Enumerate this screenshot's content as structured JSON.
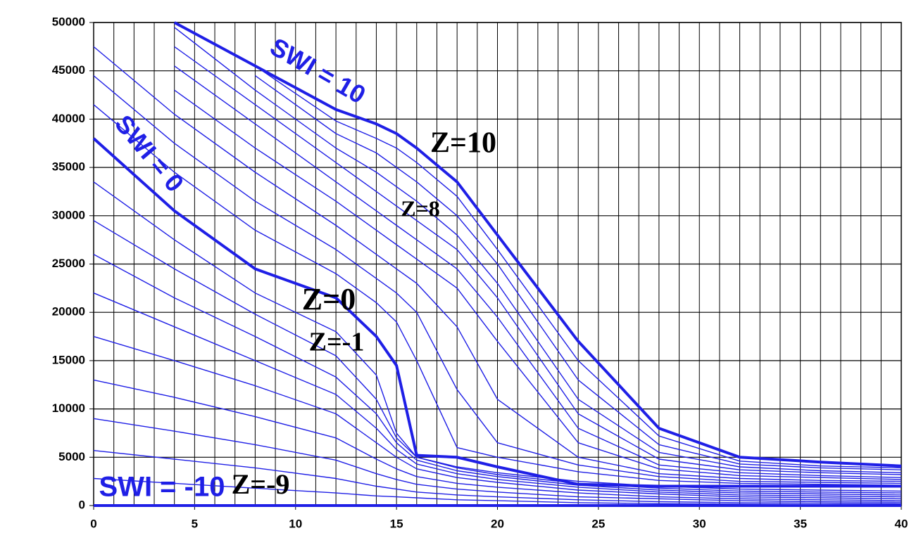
{
  "chart_data": {
    "type": "line",
    "x": [
      0,
      4,
      8,
      12,
      14,
      15,
      16,
      18,
      20,
      24,
      28,
      32,
      36,
      40
    ],
    "xlim": [
      0,
      40
    ],
    "xticks": [
      0,
      5,
      10,
      15,
      20,
      25,
      30,
      35,
      40
    ],
    "x_minor_grid_step": 1,
    "ylim": [
      0,
      50000
    ],
    "yticks": [
      0,
      5000,
      10000,
      15000,
      20000,
      25000,
      30000,
      35000,
      40000,
      45000,
      50000
    ],
    "grid": true,
    "series": [
      {
        "color": "#1f1fe6",
        "bold": true,
        "values": [
          0,
          0,
          0,
          0,
          0,
          0,
          0,
          0,
          0,
          0,
          0,
          0,
          0,
          0
        ]
      },
      {
        "color": "#1f1fe6",
        "values": [
          2800,
          2300,
          1800,
          1300,
          1000,
          900,
          800,
          600,
          500,
          300,
          200,
          150,
          100,
          100
        ]
      },
      {
        "color": "#1f1fe6",
        "values": [
          5700,
          4800,
          3900,
          2800,
          2000,
          1700,
          1400,
          1100,
          900,
          600,
          400,
          300,
          250,
          200
        ]
      },
      {
        "color": "#1f1fe6",
        "values": [
          9000,
          7700,
          6300,
          4700,
          3300,
          2700,
          2200,
          1700,
          1400,
          900,
          700,
          500,
          400,
          350
        ]
      },
      {
        "color": "#1f1fe6",
        "values": [
          13000,
          11200,
          9200,
          7000,
          4800,
          3800,
          3000,
          2300,
          1900,
          1300,
          900,
          700,
          600,
          500
        ]
      },
      {
        "color": "#1f1fe6",
        "values": [
          17500,
          15000,
          12400,
          9500,
          6500,
          5000,
          3800,
          2900,
          2400,
          1600,
          1200,
          900,
          800,
          700
        ]
      },
      {
        "color": "#1f1fe6",
        "values": [
          22000,
          18500,
          15000,
          11500,
          8000,
          5800,
          4300,
          3300,
          2700,
          1900,
          1400,
          1100,
          1000,
          900
        ]
      },
      {
        "color": "#1f1fe6",
        "values": [
          26000,
          21500,
          17500,
          13300,
          9500,
          6500,
          4700,
          3600,
          3000,
          2100,
          1600,
          1300,
          1200,
          1100
        ]
      },
      {
        "color": "#1f1fe6",
        "values": [
          29500,
          24500,
          19800,
          15500,
          11000,
          7000,
          5000,
          3900,
          3200,
          2300,
          1800,
          1500,
          1400,
          1300
        ]
      },
      {
        "color": "#1f1fe6",
        "values": [
          33500,
          27500,
          22000,
          18000,
          13500,
          7500,
          5000,
          4000,
          3400,
          2500,
          2000,
          1700,
          1600,
          1500
        ]
      },
      {
        "color": "#1f1fe6",
        "bold": true,
        "values": [
          38000,
          30500,
          24500,
          21500,
          17500,
          14500,
          5200,
          5000,
          4000,
          2200,
          2000,
          2000,
          2000,
          2000
        ]
      },
      {
        "color": "#1f1fe6",
        "values": [
          41500,
          34500,
          28500,
          24000,
          21000,
          19000,
          15000,
          6000,
          5000,
          3500,
          2600,
          2300,
          2200,
          2100
        ]
      },
      {
        "color": "#1f1fe6",
        "values": [
          44500,
          37500,
          31500,
          26500,
          23500,
          22000,
          20000,
          12000,
          6500,
          4200,
          3000,
          2500,
          2400,
          2300
        ]
      },
      {
        "color": "#1f1fe6",
        "values": [
          47500,
          40500,
          34500,
          29000,
          26000,
          24500,
          23000,
          18500,
          11000,
          5000,
          3300,
          2800,
          2600,
          2500
        ]
      },
      {
        "color": "#1f1fe6",
        "values": [
          null,
          43000,
          37000,
          31500,
          28500,
          27000,
          25500,
          22500,
          17000,
          6500,
          3800,
          3100,
          2900,
          2700
        ]
      },
      {
        "color": "#1f1fe6",
        "values": [
          null,
          45500,
          39500,
          33500,
          30500,
          29000,
          27500,
          24500,
          19500,
          8000,
          4200,
          3400,
          3100,
          2900
        ]
      },
      {
        "color": "#1f1fe6",
        "values": [
          null,
          47500,
          41500,
          35500,
          32500,
          31000,
          29500,
          26500,
          21500,
          9500,
          4800,
          3700,
          3400,
          3200
        ]
      },
      {
        "color": "#1f1fe6",
        "values": [
          null,
          49500,
          43000,
          37000,
          34500,
          33000,
          31500,
          28000,
          23000,
          11000,
          5500,
          4000,
          3600,
          3400
        ]
      },
      {
        "color": "#1f1fe6",
        "values": [
          null,
          null,
          44500,
          38500,
          36500,
          35000,
          33500,
          30000,
          25000,
          13000,
          6300,
          4300,
          3900,
          3700
        ]
      },
      {
        "color": "#1f1fe6",
        "values": [
          null,
          null,
          45500,
          39800,
          38000,
          37000,
          35500,
          32000,
          26500,
          15000,
          7200,
          4600,
          4100,
          3900
        ]
      },
      {
        "color": "#1f1fe6",
        "bold": true,
        "values": [
          null,
          50000,
          45500,
          41000,
          39500,
          38500,
          37000,
          33500,
          28000,
          17000,
          8000,
          5000,
          4500,
          4100
        ]
      }
    ],
    "annotations": [
      "SWI = 10",
      "SWI = 0",
      "SWI = -10",
      "Z=10",
      "Z=8",
      "Z=0",
      "Z=-1",
      "Z=-9"
    ]
  }
}
